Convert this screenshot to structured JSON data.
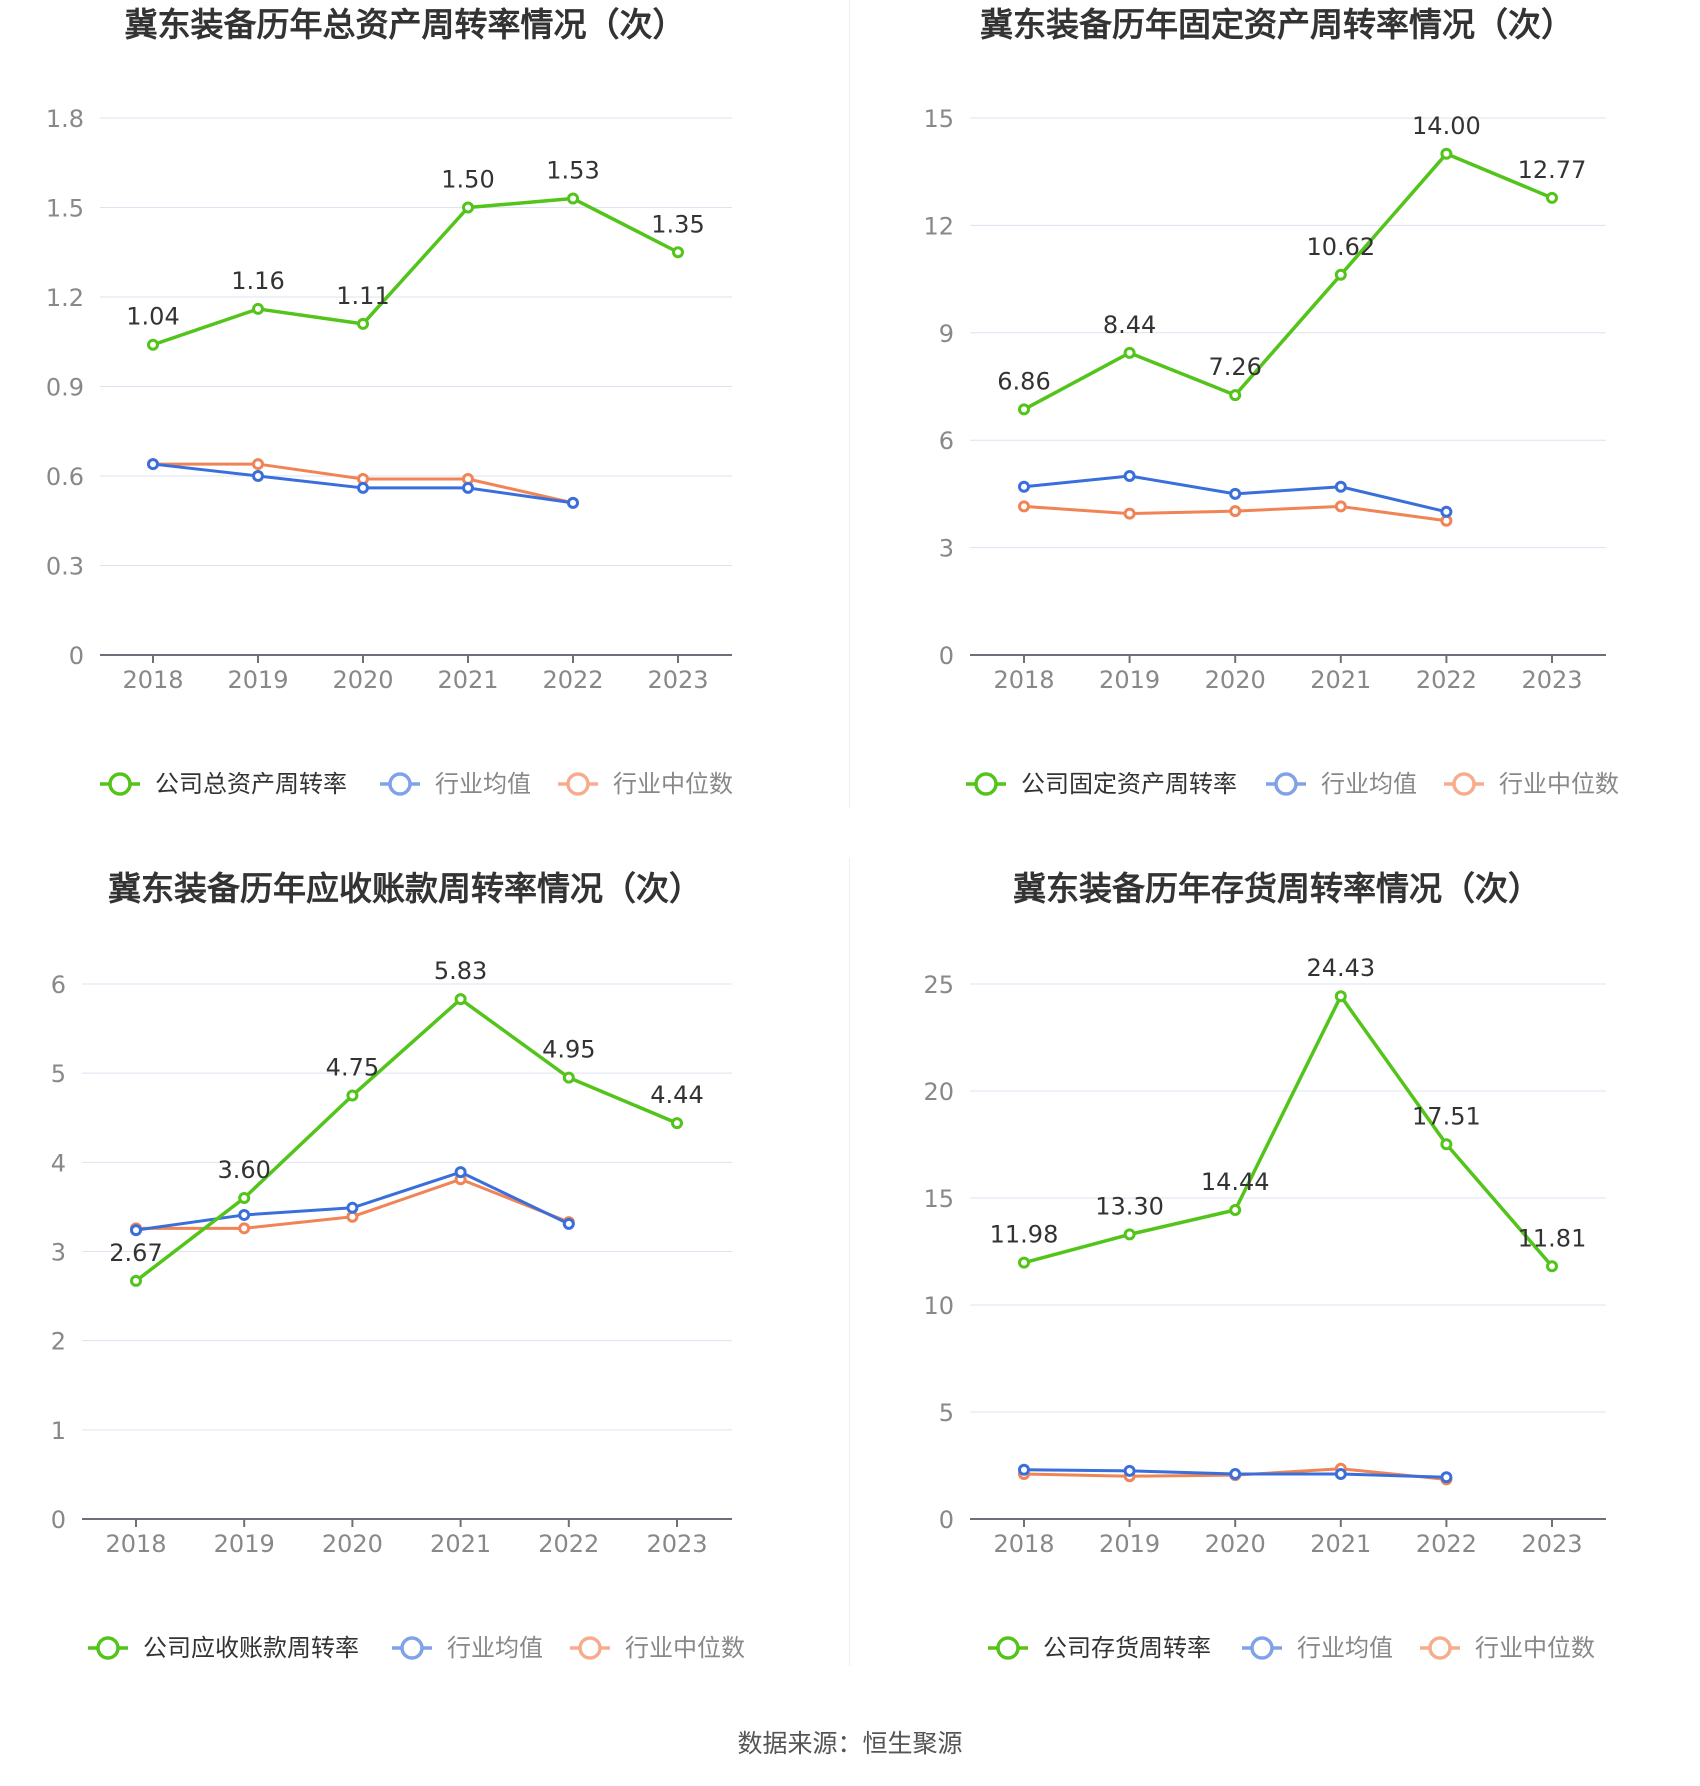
{
  "colors": {
    "company": "#52c41a",
    "average": "#3a6fdb",
    "median": "#f08456",
    "average_legend": "#7fa2e8",
    "median_legend": "#f5ad8d",
    "grid": "#dde3f0",
    "axis": "#6e7079",
    "tick_text": "#888888",
    "label_text": "#333333",
    "title_text": "#333333"
  },
  "source": "数据来源：恒生聚源",
  "chart_data": [
    {
      "type": "line",
      "title": "冀东装备历年总资产周转率情况（次）",
      "categories": [
        "2018",
        "2019",
        "2020",
        "2021",
        "2022",
        "2023"
      ],
      "yticks": [
        "0",
        "0.3",
        "0.6",
        "0.9",
        "1.2",
        "1.5",
        "1.8"
      ],
      "ylim": [
        0,
        1.8
      ],
      "series": [
        {
          "name": "公司总资产周转率",
          "role": "company",
          "values": [
            1.04,
            1.16,
            1.11,
            1.5,
            1.53,
            1.35
          ],
          "labels": [
            "1.04",
            "1.16",
            "1.11",
            "1.50",
            "1.53",
            "1.35"
          ]
        },
        {
          "name": "行业均值",
          "role": "average",
          "values": [
            0.64,
            0.6,
            0.56,
            0.56,
            0.51,
            null
          ]
        },
        {
          "name": "行业中位数",
          "role": "median",
          "values": [
            0.64,
            0.64,
            0.59,
            0.59,
            0.51,
            null
          ]
        }
      ]
    },
    {
      "type": "line",
      "title": "冀东装备历年固定资产周转率情况（次）",
      "categories": [
        "2018",
        "2019",
        "2020",
        "2021",
        "2022",
        "2023"
      ],
      "yticks": [
        "0",
        "3",
        "6",
        "9",
        "12",
        "15"
      ],
      "ylim": [
        0,
        15
      ],
      "series": [
        {
          "name": "公司固定资产周转率",
          "role": "company",
          "values": [
            6.86,
            8.44,
            7.26,
            10.62,
            14.0,
            12.77
          ],
          "labels": [
            "6.86",
            "8.44",
            "7.26",
            "10.62",
            "14.00",
            "12.77"
          ]
        },
        {
          "name": "行业均值",
          "role": "average",
          "values": [
            4.7,
            5.0,
            4.5,
            4.7,
            4.0,
            null
          ]
        },
        {
          "name": "行业中位数",
          "role": "median",
          "values": [
            4.15,
            3.95,
            4.02,
            4.15,
            3.75,
            null
          ]
        }
      ]
    },
    {
      "type": "line",
      "title": "冀东装备历年应收账款周转率情况（次）",
      "categories": [
        "2018",
        "2019",
        "2020",
        "2021",
        "2022",
        "2023"
      ],
      "yticks": [
        "0",
        "1",
        "2",
        "3",
        "4",
        "5",
        "6"
      ],
      "ylim": [
        0,
        6
      ],
      "series": [
        {
          "name": "公司应收账款周转率",
          "role": "company",
          "values": [
            2.67,
            3.6,
            4.75,
            5.83,
            4.95,
            4.44
          ],
          "labels": [
            "2.67",
            "3.60",
            "4.75",
            "5.83",
            "4.95",
            "4.44"
          ]
        },
        {
          "name": "行业均值",
          "role": "average",
          "values": [
            3.24,
            3.41,
            3.49,
            3.89,
            3.31,
            null
          ]
        },
        {
          "name": "行业中位数",
          "role": "median",
          "values": [
            3.26,
            3.26,
            3.39,
            3.81,
            3.33,
            null
          ]
        }
      ]
    },
    {
      "type": "line",
      "title": "冀东装备历年存货周转率情况（次）",
      "categories": [
        "2018",
        "2019",
        "2020",
        "2021",
        "2022",
        "2023"
      ],
      "yticks": [
        "0",
        "5",
        "10",
        "15",
        "20",
        "25"
      ],
      "ylim": [
        0,
        25
      ],
      "series": [
        {
          "name": "公司存货周转率",
          "role": "company",
          "values": [
            11.98,
            13.3,
            14.44,
            24.43,
            17.51,
            11.81
          ],
          "labels": [
            "11.98",
            "13.30",
            "14.44",
            "24.43",
            "17.51",
            "11.81"
          ]
        },
        {
          "name": "行业均值",
          "role": "average",
          "values": [
            2.3,
            2.25,
            2.1,
            2.1,
            1.95,
            null
          ]
        },
        {
          "name": "行业中位数",
          "role": "median",
          "values": [
            2.1,
            2.0,
            2.05,
            2.35,
            1.85,
            null
          ]
        }
      ]
    }
  ]
}
